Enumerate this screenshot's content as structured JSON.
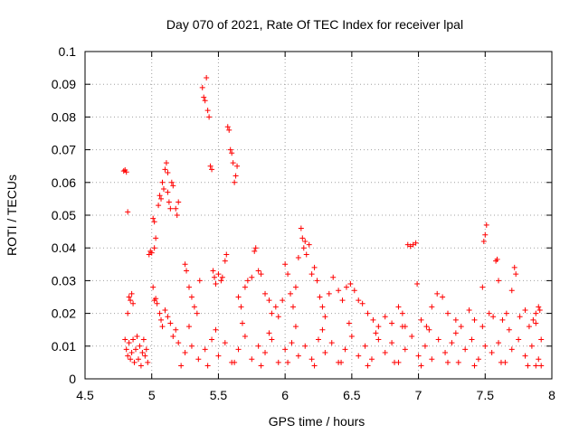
{
  "chart_data": {
    "type": "scatter",
    "title": "Day 070 of 2021, Rate Of TEC Index for receiver lpal",
    "xlabel": "GPS time / hours",
    "ylabel": "ROTI / TECUs",
    "xlim": [
      4.5,
      8
    ],
    "ylim": [
      0,
      0.1
    ],
    "x_ticks": [
      "4.5",
      "5",
      "5.5",
      "6",
      "6.5",
      "7",
      "7.5",
      "8"
    ],
    "y_ticks": [
      "0",
      "0.01",
      "0.02",
      "0.03",
      "0.04",
      "0.05",
      "0.06",
      "0.07",
      "0.08",
      "0.09",
      "0.1"
    ],
    "grid": true,
    "marker": "+",
    "series": [
      {
        "name": "ROTI",
        "color": "#ff0000",
        "points": [
          [
            4.79,
            0.0635
          ],
          [
            4.8,
            0.0638
          ],
          [
            4.81,
            0.0632
          ],
          [
            4.82,
            0.051
          ],
          [
            4.83,
            0.025
          ],
          [
            4.84,
            0.024
          ],
          [
            4.85,
            0.026
          ],
          [
            4.86,
            0.023
          ],
          [
            4.82,
            0.02
          ],
          [
            4.8,
            0.012
          ],
          [
            4.81,
            0.009
          ],
          [
            4.82,
            0.007
          ],
          [
            4.83,
            0.011
          ],
          [
            4.84,
            0.006
          ],
          [
            4.85,
            0.008
          ],
          [
            4.86,
            0.012
          ],
          [
            4.87,
            0.005
          ],
          [
            4.88,
            0.009
          ],
          [
            4.89,
            0.013
          ],
          [
            4.9,
            0.006
          ],
          [
            4.91,
            0.01
          ],
          [
            4.92,
            0.004
          ],
          [
            4.93,
            0.008
          ],
          [
            4.94,
            0.012
          ],
          [
            4.95,
            0.007
          ],
          [
            4.96,
            0.009
          ],
          [
            4.97,
            0.005
          ],
          [
            4.98,
            0.038
          ],
          [
            4.99,
            0.039
          ],
          [
            5.0,
            0.0385
          ],
          [
            5.01,
            0.049
          ],
          [
            5.02,
            0.048
          ],
          [
            5.02,
            0.04
          ],
          [
            5.03,
            0.043
          ],
          [
            5.01,
            0.028
          ],
          [
            5.02,
            0.024
          ],
          [
            5.03,
            0.0245
          ],
          [
            5.04,
            0.023
          ],
          [
            5.05,
            0.053
          ],
          [
            5.06,
            0.056
          ],
          [
            5.07,
            0.055
          ],
          [
            5.08,
            0.06
          ],
          [
            5.09,
            0.058
          ],
          [
            5.1,
            0.064
          ],
          [
            5.11,
            0.066
          ],
          [
            5.12,
            0.063
          ],
          [
            5.12,
            0.057
          ],
          [
            5.13,
            0.054
          ],
          [
            5.14,
            0.052
          ],
          [
            5.15,
            0.06
          ],
          [
            5.16,
            0.059
          ],
          [
            5.18,
            0.052
          ],
          [
            5.19,
            0.05
          ],
          [
            5.2,
            0.054
          ],
          [
            5.06,
            0.02
          ],
          [
            5.07,
            0.018
          ],
          [
            5.08,
            0.016
          ],
          [
            5.1,
            0.021
          ],
          [
            5.12,
            0.019
          ],
          [
            5.14,
            0.017
          ],
          [
            5.16,
            0.013
          ],
          [
            5.18,
            0.015
          ],
          [
            5.2,
            0.011
          ],
          [
            5.25,
            0.035
          ],
          [
            5.26,
            0.033
          ],
          [
            5.28,
            0.028
          ],
          [
            5.3,
            0.025
          ],
          [
            5.32,
            0.022
          ],
          [
            5.34,
            0.02
          ],
          [
            5.36,
            0.03
          ],
          [
            5.38,
            0.089
          ],
          [
            5.39,
            0.086
          ],
          [
            5.4,
            0.085
          ],
          [
            5.41,
            0.092
          ],
          [
            5.42,
            0.082
          ],
          [
            5.43,
            0.08
          ],
          [
            5.44,
            0.065
          ],
          [
            5.45,
            0.064
          ],
          [
            5.46,
            0.033
          ],
          [
            5.47,
            0.031
          ],
          [
            5.48,
            0.029
          ],
          [
            5.5,
            0.032
          ],
          [
            5.52,
            0.03
          ],
          [
            5.53,
            0.031
          ],
          [
            5.55,
            0.036
          ],
          [
            5.56,
            0.038
          ],
          [
            5.57,
            0.077
          ],
          [
            5.58,
            0.076
          ],
          [
            5.59,
            0.07
          ],
          [
            5.6,
            0.069
          ],
          [
            5.61,
            0.066
          ],
          [
            5.62,
            0.06
          ],
          [
            5.63,
            0.062
          ],
          [
            5.64,
            0.065
          ],
          [
            5.65,
            0.025
          ],
          [
            5.67,
            0.022
          ],
          [
            5.7,
            0.028
          ],
          [
            5.72,
            0.03
          ],
          [
            5.75,
            0.031
          ],
          [
            5.77,
            0.039
          ],
          [
            5.78,
            0.04
          ],
          [
            5.8,
            0.033
          ],
          [
            5.82,
            0.032
          ],
          [
            5.85,
            0.026
          ],
          [
            5.88,
            0.024
          ],
          [
            5.9,
            0.02
          ],
          [
            5.93,
            0.022
          ],
          [
            5.95,
            0.019
          ],
          [
            5.98,
            0.024
          ],
          [
            6.0,
            0.035
          ],
          [
            6.02,
            0.032
          ],
          [
            6.04,
            0.026
          ],
          [
            6.06,
            0.022
          ],
          [
            6.08,
            0.028
          ],
          [
            6.1,
            0.037
          ],
          [
            6.12,
            0.046
          ],
          [
            6.13,
            0.043
          ],
          [
            6.14,
            0.04
          ],
          [
            6.15,
            0.042
          ],
          [
            6.16,
            0.038
          ],
          [
            6.18,
            0.041
          ],
          [
            6.2,
            0.032
          ],
          [
            6.22,
            0.034
          ],
          [
            6.24,
            0.03
          ],
          [
            6.26,
            0.025
          ],
          [
            6.28,
            0.022
          ],
          [
            6.3,
            0.019
          ],
          [
            6.33,
            0.026
          ],
          [
            6.36,
            0.031
          ],
          [
            6.4,
            0.027
          ],
          [
            6.43,
            0.024
          ],
          [
            6.46,
            0.028
          ],
          [
            6.49,
            0.029
          ],
          [
            6.52,
            0.027
          ],
          [
            6.55,
            0.024
          ],
          [
            6.58,
            0.023
          ],
          [
            6.62,
            0.02
          ],
          [
            6.66,
            0.018
          ],
          [
            6.7,
            0.016
          ],
          [
            6.75,
            0.019
          ],
          [
            6.8,
            0.017
          ],
          [
            6.85,
            0.022
          ],
          [
            6.88,
            0.02
          ],
          [
            6.9,
            0.016
          ],
          [
            6.92,
            0.041
          ],
          [
            6.94,
            0.0405
          ],
          [
            6.96,
            0.041
          ],
          [
            6.98,
            0.0415
          ],
          [
            6.99,
            0.029
          ],
          [
            7.02,
            0.018
          ],
          [
            7.06,
            0.016
          ],
          [
            7.1,
            0.022
          ],
          [
            7.14,
            0.026
          ],
          [
            7.18,
            0.025
          ],
          [
            7.22,
            0.02
          ],
          [
            7.28,
            0.018
          ],
          [
            7.32,
            0.016
          ],
          [
            7.38,
            0.021
          ],
          [
            7.42,
            0.018
          ],
          [
            7.48,
            0.028
          ],
          [
            7.49,
            0.042
          ],
          [
            7.5,
            0.044
          ],
          [
            7.51,
            0.047
          ],
          [
            7.53,
            0.02
          ],
          [
            7.56,
            0.019
          ],
          [
            7.58,
            0.036
          ],
          [
            7.59,
            0.0365
          ],
          [
            7.6,
            0.03
          ],
          [
            7.63,
            0.018
          ],
          [
            7.66,
            0.02
          ],
          [
            7.7,
            0.027
          ],
          [
            7.72,
            0.034
          ],
          [
            7.73,
            0.032
          ],
          [
            7.76,
            0.019
          ],
          [
            7.8,
            0.021
          ],
          [
            7.83,
            0.016
          ],
          [
            7.86,
            0.018
          ],
          [
            7.88,
            0.02
          ],
          [
            7.9,
            0.022
          ],
          [
            7.91,
            0.021
          ],
          [
            7.92,
            0.012
          ],
          [
            5.25,
            0.008
          ],
          [
            5.3,
            0.01
          ],
          [
            5.35,
            0.006
          ],
          [
            5.4,
            0.009
          ],
          [
            5.45,
            0.012
          ],
          [
            5.5,
            0.007
          ],
          [
            5.55,
            0.011
          ],
          [
            5.6,
            0.005
          ],
          [
            5.65,
            0.009
          ],
          [
            5.7,
            0.013
          ],
          [
            5.75,
            0.006
          ],
          [
            5.8,
            0.01
          ],
          [
            5.85,
            0.008
          ],
          [
            5.9,
            0.012
          ],
          [
            5.95,
            0.005
          ],
          [
            6.0,
            0.009
          ],
          [
            6.05,
            0.011
          ],
          [
            6.1,
            0.007
          ],
          [
            6.15,
            0.01
          ],
          [
            6.2,
            0.006
          ],
          [
            6.25,
            0.012
          ],
          [
            6.3,
            0.008
          ],
          [
            6.35,
            0.011
          ],
          [
            6.4,
            0.005
          ],
          [
            6.45,
            0.009
          ],
          [
            6.5,
            0.013
          ],
          [
            6.55,
            0.007
          ],
          [
            6.6,
            0.01
          ],
          [
            6.65,
            0.006
          ],
          [
            6.7,
            0.012
          ],
          [
            6.75,
            0.008
          ],
          [
            6.8,
            0.011
          ],
          [
            6.85,
            0.005
          ],
          [
            6.9,
            0.009
          ],
          [
            6.95,
            0.013
          ],
          [
            7.0,
            0.007
          ],
          [
            7.05,
            0.01
          ],
          [
            7.1,
            0.006
          ],
          [
            7.15,
            0.012
          ],
          [
            7.2,
            0.008
          ],
          [
            7.25,
            0.011
          ],
          [
            7.3,
            0.005
          ],
          [
            7.35,
            0.009
          ],
          [
            7.4,
            0.012
          ],
          [
            7.45,
            0.006
          ],
          [
            7.5,
            0.01
          ],
          [
            7.55,
            0.008
          ],
          [
            7.6,
            0.011
          ],
          [
            7.65,
            0.005
          ],
          [
            7.7,
            0.009
          ],
          [
            7.75,
            0.012
          ],
          [
            7.8,
            0.007
          ],
          [
            7.85,
            0.01
          ],
          [
            7.9,
            0.006
          ],
          [
            7.92,
            0.004
          ],
          [
            5.22,
            0.004
          ],
          [
            5.42,
            0.004
          ],
          [
            5.62,
            0.005
          ],
          [
            5.82,
            0.004
          ],
          [
            6.02,
            0.005
          ],
          [
            6.22,
            0.004
          ],
          [
            6.42,
            0.005
          ],
          [
            6.62,
            0.004
          ],
          [
            6.82,
            0.005
          ],
          [
            7.02,
            0.004
          ],
          [
            7.22,
            0.005
          ],
          [
            7.42,
            0.004
          ],
          [
            7.62,
            0.005
          ],
          [
            7.82,
            0.004
          ],
          [
            7.88,
            0.004
          ],
          [
            5.28,
            0.016
          ],
          [
            5.48,
            0.015
          ],
          [
            5.68,
            0.017
          ],
          [
            5.88,
            0.014
          ],
          [
            6.08,
            0.016
          ],
          [
            6.28,
            0.015
          ],
          [
            6.48,
            0.017
          ],
          [
            6.68,
            0.014
          ],
          [
            6.88,
            0.016
          ],
          [
            7.08,
            0.015
          ],
          [
            7.28,
            0.014
          ],
          [
            7.48,
            0.016
          ],
          [
            7.68,
            0.015
          ],
          [
            7.88,
            0.017
          ]
        ]
      }
    ]
  }
}
